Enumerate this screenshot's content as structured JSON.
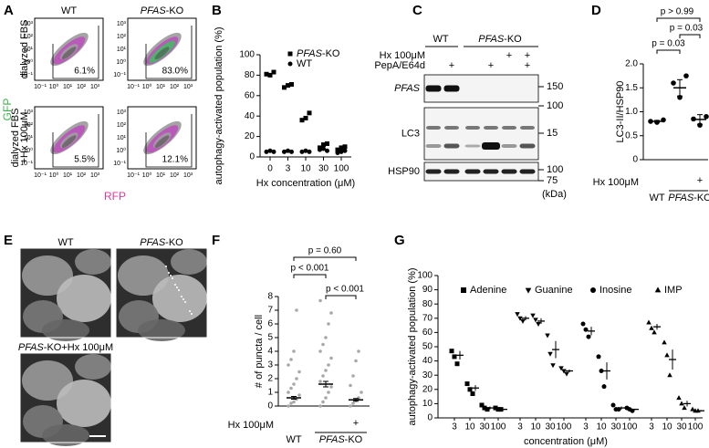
{
  "panel_labels": [
    "A",
    "B",
    "C",
    "D",
    "E",
    "F",
    "G"
  ],
  "flow": {
    "columns": [
      "WT",
      "PFAS-KO"
    ],
    "rows": [
      [
        "dialyzed FBS"
      ],
      [
        "dialyzed FBS",
        "+Hx 100μM"
      ]
    ],
    "percentages": [
      [
        "6.1%",
        "83.0%"
      ],
      [
        "5.5%",
        "12.1%"
      ]
    ],
    "x_label": "RFP",
    "y_label": "GFP",
    "ticks": [
      "10⁻¹",
      "10⁰",
      "10¹",
      "10²",
      "10³"
    ]
  },
  "blot": {
    "genotypes": [
      "WT",
      "PFAS-KO"
    ],
    "treatments": [
      {
        "label": "Hx 100μM",
        "marks": [
          null,
          null,
          null,
          null,
          "+",
          "+"
        ]
      },
      {
        "label": "PepA/E64d",
        "marks": [
          null,
          "+",
          null,
          "+",
          null,
          "+"
        ]
      }
    ],
    "rows": [
      "PFAS",
      "LC3",
      "HSP90"
    ],
    "markers": [
      "150",
      "100",
      "15",
      "100",
      "75"
    ],
    "unit": "(kDa)"
  },
  "images": {
    "labels": [
      "WT",
      "PFAS-KO",
      "PFAS-KO+Hx 100μM"
    ]
  },
  "chart_data": [
    {
      "type": "dot",
      "y_label": "autophagy-activated population (%)",
      "x_label": "Hx concentration (μM)",
      "categories": [
        "0",
        "3",
        "10",
        "30",
        "100"
      ],
      "ylim": [
        0,
        100
      ],
      "yticks": [
        0,
        20,
        40,
        60,
        80,
        100
      ],
      "legend": "upper right",
      "series": [
        {
          "name": "PFAS-KO",
          "marker": "square",
          "color": "#000",
          "values": [
            [
              81,
              80,
              83
            ],
            [
              68,
              70,
              71
            ],
            [
              36,
              38,
              43
            ],
            [
              9,
              12,
              13
            ],
            [
              7,
              9,
              10
            ]
          ]
        },
        {
          "name": "WT",
          "marker": "circle",
          "color": "#000",
          "values": [
            [
              5,
              6,
              5
            ],
            [
              5,
              6,
              5
            ],
            [
              5,
              6,
              5
            ],
            [
              7,
              8,
              6
            ],
            [
              4,
              5,
              6
            ]
          ]
        }
      ]
    },
    {
      "type": "dot-mean",
      "y_label": "LC3-II/HSP90",
      "ylim": [
        0,
        2
      ],
      "yticks": [
        0,
        0.5,
        {
          "value": 1,
          "label": "1.0"
        },
        1.5,
        {
          "value": 2,
          "label": "2.0"
        }
      ],
      "genotypes": [
        "WT",
        "PFAS-KO"
      ],
      "treatment": {
        "label": "Hx 100μM",
        "marks": [
          null,
          null,
          "+"
        ]
      },
      "values": [
        [
          0.8,
          0.78,
          0.83
        ],
        [
          1.6,
          1.3,
          1.75
        ],
        [
          0.85,
          0.72,
          0.9
        ]
      ],
      "mean": [
        0.8,
        1.5,
        0.84
      ],
      "sem": [
        0.02,
        0.17,
        0.1
      ],
      "comparisons": [
        "p = 0.03",
        "p = 0.03",
        "p > 0.99"
      ]
    },
    {
      "type": "dot-mean",
      "y_label": "# of puncta / cell",
      "ylim": [
        0,
        8
      ],
      "yticks": [
        0,
        1,
        2,
        3,
        4,
        5,
        6,
        7,
        8
      ],
      "genotypes": [
        "WT",
        "PFAS-KO"
      ],
      "treatment": {
        "label": "Hx 100μM",
        "marks": [
          null,
          null,
          "+"
        ]
      },
      "values": [
        [
          0,
          0.2,
          0.3,
          0.5,
          0.8,
          1.0,
          1.3,
          1.6,
          2.0,
          2.5,
          3.0,
          3.4,
          4.0,
          7.0
        ],
        [
          0,
          0.3,
          0.6,
          1.0,
          1.4,
          1.8,
          2.2,
          2.6,
          3.0,
          3.5,
          4.0,
          4.5,
          5.0,
          6.0,
          6.8,
          7.7
        ],
        [
          0,
          0.2,
          0.4,
          0.6,
          1.0,
          1.5,
          2.2,
          3.3,
          4.0
        ]
      ],
      "mean": [
        0.6,
        1.6,
        0.45
      ],
      "sem": [
        0.1,
        0.2,
        0.1
      ],
      "comparisons": [
        "p < 0.001",
        "p < 0.001",
        "p = 0.60"
      ]
    },
    {
      "type": "grouped-dot",
      "y_label": "autophagy-activated population (%)",
      "x_label": "concentration (μM)",
      "categories": [
        "3",
        "10",
        "30",
        "100"
      ],
      "ylim": [
        0,
        100
      ],
      "yticks": [
        0,
        10,
        20,
        30,
        40,
        50,
        60,
        70,
        80,
        90,
        100
      ],
      "series": [
        {
          "name": "Adenine",
          "marker": "square",
          "values": [
            [
              47,
              43,
              38
            ],
            [
              24,
              20,
              17
            ],
            [
              9,
              7,
              6
            ],
            [
              7,
              6,
              6
            ]
          ],
          "mean": [
            44,
            21,
            7,
            6
          ],
          "sem": [
            3,
            2,
            1,
            0.5
          ]
        },
        {
          "name": "Guanine",
          "marker": "tri-down",
          "values": [
            [
              73,
              70,
              68
            ],
            [
              72,
              69,
              66
            ],
            [
              58,
              45,
              37
            ],
            [
              35,
              33,
              31
            ]
          ],
          "mean": [
            70,
            68,
            48,
            33
          ],
          "sem": [
            1.5,
            2,
            6,
            1
          ]
        },
        {
          "name": "Inosine",
          "marker": "circle",
          "values": [
            [
              66,
              62,
              57
            ],
            [
              43,
              33,
              22
            ],
            [
              9,
              6,
              6
            ],
            [
              7,
              6,
              5
            ]
          ],
          "mean": [
            61,
            33,
            7,
            6
          ],
          "sem": [
            3,
            6,
            1,
            0.5
          ]
        },
        {
          "name": "IMP",
          "marker": "tri-up",
          "values": [
            [
              67,
              63,
              60
            ],
            [
              53,
              44,
              30
            ],
            [
              14,
              10,
              7
            ],
            [
              6,
              5,
              5
            ]
          ],
          "mean": [
            64,
            41,
            10,
            5
          ],
          "sem": [
            2,
            7,
            2,
            0.5
          ]
        }
      ]
    }
  ]
}
